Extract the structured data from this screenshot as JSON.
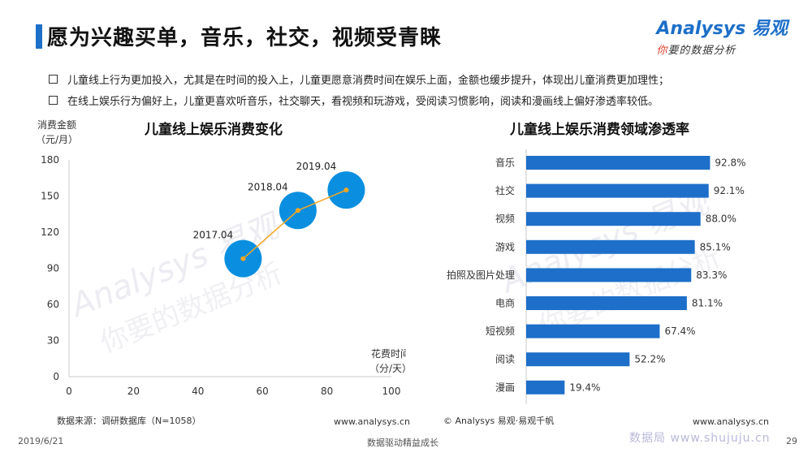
{
  "header": {
    "title": "愿为兴趣买单，音乐，社交，视频受青睐",
    "logo_main": "Analysys 易观",
    "logo_sub_accent": "你",
    "logo_sub_rest": "要的数据分析"
  },
  "bullets": [
    "儿童线上行为更加投入，尤其是在时间的投入上，儿童更愿意消费时间在娱乐上面，金额也缓步提升，体现出儿童消费更加理性；",
    "在线上娱乐行为偏好上，儿童更喜欢听音乐，社交聊天，看视频和玩游戏，受阅读习惯影响，阅读和漫画线上偏好渗透率较低。"
  ],
  "chart_data": [
    {
      "type": "scatter",
      "title": "儿童线上娱乐消费变化",
      "ylabel_line1": "消费金额",
      "ylabel_line2": "（元/月）",
      "xlabel_line1": "花费时间",
      "xlabel_line2": "（分/天）",
      "xlim": [
        0,
        100
      ],
      "ylim": [
        0,
        180
      ],
      "xticks": [
        0,
        20,
        40,
        60,
        80,
        100
      ],
      "yticks": [
        0,
        30,
        60,
        90,
        120,
        150,
        180
      ],
      "points": [
        {
          "label": "2017.04",
          "x": 54,
          "y": 98
        },
        {
          "label": "2018.04",
          "x": 71,
          "y": 138
        },
        {
          "label": "2019.04",
          "x": 86,
          "y": 155
        }
      ],
      "bubble_color": "#0a8fe0",
      "line_color": "#f5a623"
    },
    {
      "type": "bar",
      "orientation": "horizontal",
      "title": "儿童线上娱乐消费领域渗透率",
      "categories": [
        "音乐",
        "社交",
        "视频",
        "游戏",
        "拍照及图片处理",
        "电商",
        "短视频",
        "阅读",
        "漫画"
      ],
      "values": [
        92.8,
        92.1,
        88.0,
        85.1,
        83.3,
        81.1,
        67.4,
        52.2,
        19.4
      ],
      "value_labels": [
        "92.8%",
        "92.1%",
        "88.0%",
        "85.1%",
        "83.3%",
        "81.1%",
        "67.4%",
        "52.2%",
        "19.4%"
      ],
      "xlim": [
        0,
        100
      ],
      "bar_color": "#1d6fc9"
    }
  ],
  "footer": {
    "source": "数据来源：调研数据库（N=1058）",
    "left_url": "www.analysys.cn",
    "copyright": "© Analysys 易观·易观千帆",
    "right_url": "www.analysys.cn",
    "date": "2019/6/21",
    "slogan": "数据驱动精益成长",
    "watermark": "数据局  www.shujuju.cn",
    "page": "29"
  }
}
